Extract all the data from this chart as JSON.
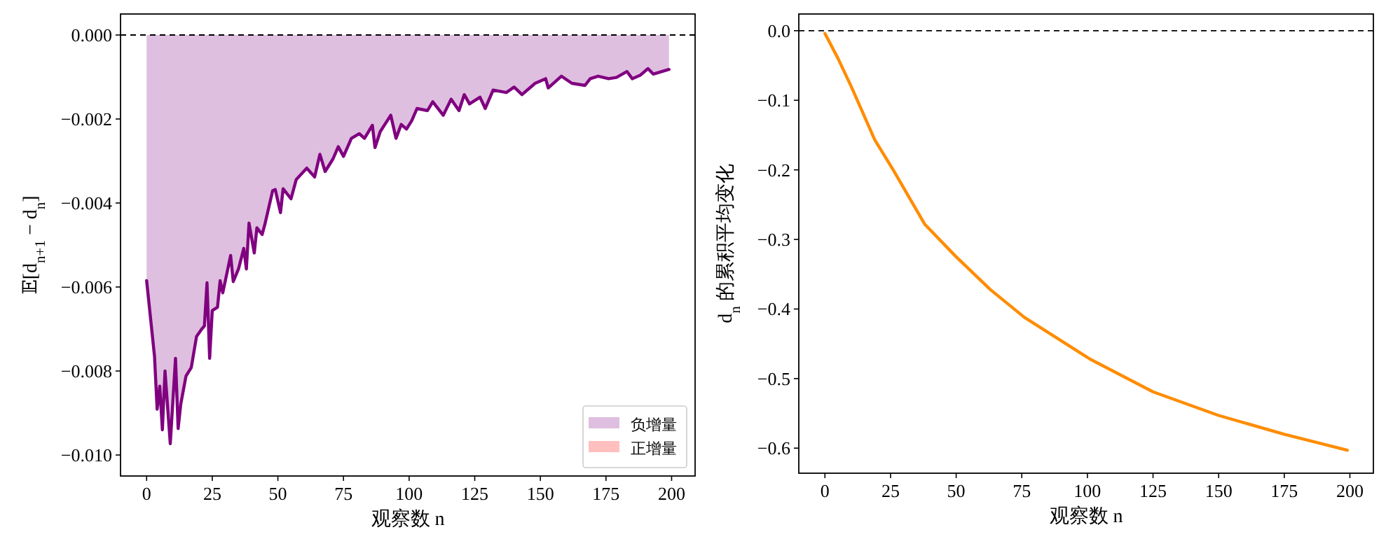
{
  "chart_data": [
    {
      "type": "area",
      "xlabel": "观察数 n",
      "ylabel": "𝔼[d$_{n+1}$ − d$_{n}$]",
      "legend": "bottom right",
      "grid": false,
      "xlim": [
        -9.95,
        208.95
      ],
      "xticks": [
        0,
        25,
        50,
        75,
        100,
        125,
        150,
        175,
        200
      ],
      "ylim": [
        -0.0105,
        0.0005
      ],
      "yticks": [
        {
          "value": 0,
          "label": "0.000"
        },
        {
          "value": -0.002,
          "label": "−0.002"
        },
        {
          "value": -0.004,
          "label": "−0.004"
        },
        {
          "value": -0.006,
          "label": "−0.006"
        },
        {
          "value": -0.008,
          "label": "−0.008"
        },
        {
          "value": -0.01,
          "label": "−0.010"
        }
      ],
      "ref_lines": [
        {
          "axis": "y",
          "value": 0,
          "color": "#000000",
          "line_style": "dashed"
        }
      ],
      "x": [
        0,
        3,
        4,
        5,
        6,
        7,
        9,
        11,
        12,
        13,
        15,
        17,
        19,
        21,
        22,
        23,
        24,
        25,
        27,
        28,
        29,
        32,
        33,
        35,
        37,
        38,
        39,
        41,
        42,
        44,
        45,
        48,
        49,
        51,
        52,
        55,
        57,
        61,
        64,
        66,
        68,
        71,
        73,
        75,
        78,
        81,
        83,
        86,
        87,
        89,
        93,
        95,
        97,
        99,
        101,
        103,
        107,
        109,
        113,
        116,
        119,
        121,
        123,
        127,
        129,
        132,
        137,
        140,
        143,
        148,
        152,
        153,
        158,
        162,
        167,
        169,
        172,
        176,
        179,
        183,
        185,
        188,
        191,
        193,
        199
      ],
      "series": [
        {
          "name": "负增量",
          "color": "#800080",
          "values": [
            -0.00585,
            -0.00765,
            -0.00891,
            -0.00836,
            -0.0094,
            -0.008,
            -0.00973,
            -0.0077,
            -0.00937,
            -0.00879,
            -0.00812,
            -0.00792,
            -0.00718,
            -0.007,
            -0.00693,
            -0.0059,
            -0.0077,
            -0.00656,
            -0.00648,
            -0.00585,
            -0.00614,
            -0.00525,
            -0.00587,
            -0.00557,
            -0.00508,
            -0.00557,
            -0.00448,
            -0.00519,
            -0.00459,
            -0.00475,
            -0.00452,
            -0.00371,
            -0.00368,
            -0.00423,
            -0.00366,
            -0.0039,
            -0.00344,
            -0.00317,
            -0.00338,
            -0.00284,
            -0.00325,
            -0.00295,
            -0.00266,
            -0.00289,
            -0.00246,
            -0.00235,
            -0.00246,
            -0.00215,
            -0.00268,
            -0.0023,
            -0.00191,
            -0.00246,
            -0.00213,
            -0.00224,
            -0.00204,
            -0.00175,
            -0.0018,
            -0.00159,
            -0.00191,
            -0.00153,
            -0.0018,
            -0.00142,
            -0.00164,
            -0.00148,
            -0.00175,
            -0.00131,
            -0.00137,
            -0.00124,
            -0.00142,
            -0.00115,
            -0.00104,
            -0.00126,
            -0.00098,
            -0.00115,
            -0.0012,
            -0.00104,
            -0.00098,
            -0.00104,
            -0.00101,
            -0.00087,
            -0.00104,
            -0.00096,
            -0.0008,
            -0.00093,
            -0.00082
          ]
        },
        {
          "name": "正增量",
          "color": "#ff0000",
          "values": [
            null,
            null,
            null,
            null,
            null,
            null,
            null,
            null,
            null,
            null,
            null,
            null,
            null,
            null,
            null,
            null,
            null,
            null,
            null,
            null,
            null,
            null,
            null,
            null,
            null,
            null,
            null,
            null,
            null,
            null,
            null,
            null,
            null,
            null,
            null,
            null,
            null,
            null,
            null,
            null,
            null,
            null,
            null,
            null,
            null,
            null,
            null,
            null,
            null,
            null,
            null,
            null,
            null,
            null,
            null,
            null,
            null,
            null,
            null,
            null,
            null,
            null,
            null,
            null,
            null,
            null,
            null,
            null,
            null,
            null,
            null,
            null,
            null,
            null,
            null,
            null,
            null,
            null,
            null,
            null,
            null,
            null,
            null,
            null,
            null
          ]
        }
      ]
    },
    {
      "type": "line",
      "xlabel": "观察数 n",
      "ylabel": "d$_{n}$ 的累积平均变化",
      "grid": false,
      "xlim": [
        -9.95,
        208.95
      ],
      "xticks": [
        0,
        25,
        50,
        75,
        100,
        125,
        150,
        175,
        200
      ],
      "ylim": [
        -0.636,
        0.024
      ],
      "yticks": [
        {
          "value": 0,
          "label": "0.0"
        },
        {
          "value": -0.1,
          "label": "−0.1"
        },
        {
          "value": -0.2,
          "label": "−0.2"
        },
        {
          "value": -0.3,
          "label": "−0.3"
        },
        {
          "value": -0.4,
          "label": "−0.4"
        },
        {
          "value": -0.5,
          "label": "−0.5"
        },
        {
          "value": -0.6,
          "label": "−0.6"
        }
      ],
      "ref_lines": [
        {
          "axis": "y",
          "value": 0,
          "color": "#000000",
          "line_style": "dashed"
        }
      ],
      "x": [
        0,
        5,
        10,
        19,
        26,
        38,
        50,
        63,
        76,
        101,
        125,
        150,
        175,
        199
      ],
      "series": [
        {
          "color": "#ff8c00",
          "values": [
            -0.004,
            -0.04,
            -0.08,
            -0.157,
            -0.2,
            -0.278,
            -0.325,
            -0.372,
            -0.412,
            -0.472,
            -0.519,
            -0.553,
            -0.58,
            -0.603
          ]
        }
      ]
    }
  ]
}
